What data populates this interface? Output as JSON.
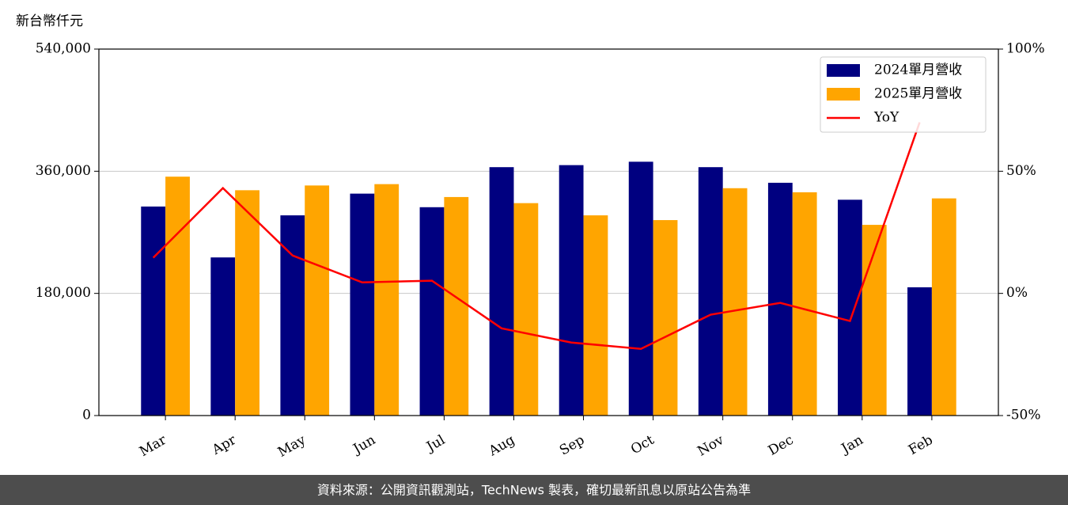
{
  "chart_data": {
    "type": "bar_line",
    "y_label": "新台幣仟元",
    "categories": [
      "Mar",
      "Apr",
      "May",
      "Jun",
      "Jul",
      "Aug",
      "Sep",
      "Oct",
      "Nov",
      "Dec",
      "Jan",
      "Feb"
    ],
    "series": [
      {
        "name": "2024單月營收",
        "color": "#000080",
        "values": [
          308000,
          233000,
          295000,
          327000,
          307000,
          366000,
          369000,
          374000,
          366000,
          343000,
          318000,
          189000
        ]
      },
      {
        "name": "2025單月營收",
        "color": "#ffa500",
        "values": [
          352000,
          332000,
          339000,
          341000,
          322000,
          313000,
          295000,
          288000,
          335000,
          329000,
          281000,
          320000
        ]
      },
      {
        "name": "YoY",
        "color": "#ff0000",
        "axis": "y2",
        "values": [
          14.6,
          43.1,
          15.5,
          4.5,
          5.2,
          -14.3,
          -20.1,
          -22.7,
          -8.7,
          -3.9,
          -11.3,
          70.0
        ]
      }
    ],
    "ylim": [
      0,
      540000
    ],
    "yticks": [
      0,
      {
        "value": 180000,
        "label": "180,000"
      },
      {
        "value": 360000,
        "label": "360,000"
      },
      {
        "value": 540000,
        "label": "540,000"
      }
    ],
    "y2lim": [
      -50,
      100
    ],
    "y2ticks": [
      {
        "value": -50,
        "label": "-50%"
      },
      {
        "value": 0,
        "label": "0%"
      },
      {
        "value": 50,
        "label": "50%"
      },
      {
        "value": 100,
        "label": "100%"
      }
    ],
    "grid": true,
    "legend": "upper right"
  },
  "footer": "資料來源：公開資訊觀測站，TechNews 製表，確切最新訊息以原站公告為準"
}
